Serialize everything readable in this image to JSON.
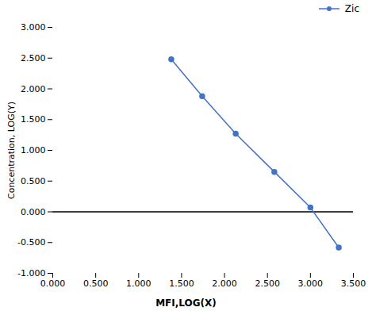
{
  "chart_data": {
    "type": "line",
    "xlabel": "MFI,LOG(X)",
    "ylabel": "Concentration, LOG(Y)",
    "x": [
      1.38,
      1.74,
      2.13,
      2.58,
      3.0,
      3.33
    ],
    "series": [
      {
        "name": "Zic",
        "color": "#4472C4",
        "marker": "circle",
        "values": [
          2.48,
          1.88,
          1.27,
          0.65,
          0.07,
          -0.58
        ]
      }
    ],
    "xlim": [
      0.0,
      3.5
    ],
    "ylim": [
      -1.0,
      3.0
    ],
    "xticks": [
      {
        "value": 0.0,
        "label": "0.000"
      },
      {
        "value": 0.5,
        "label": "0.500"
      },
      {
        "value": 1.0,
        "label": "1.000"
      },
      {
        "value": 1.5,
        "label": "1.500"
      },
      {
        "value": 2.0,
        "label": "2.000"
      },
      {
        "value": 2.5,
        "label": "2.500"
      },
      {
        "value": 3.0,
        "label": "3.000"
      },
      {
        "value": 3.5,
        "label": "3.500"
      }
    ],
    "yticks": [
      {
        "value": -1.0,
        "label": "-1.000"
      },
      {
        "value": -0.5,
        "label": "-0.500"
      },
      {
        "value": 0.0,
        "label": "0.000"
      },
      {
        "value": 0.5,
        "label": "0.500"
      },
      {
        "value": 1.0,
        "label": "1.000"
      },
      {
        "value": 1.5,
        "label": "1.500"
      },
      {
        "value": 2.0,
        "label": "2.000"
      },
      {
        "value": 2.5,
        "label": "2.500"
      },
      {
        "value": 3.0,
        "label": "3.000"
      }
    ],
    "legend": "upper right",
    "grid": false
  }
}
